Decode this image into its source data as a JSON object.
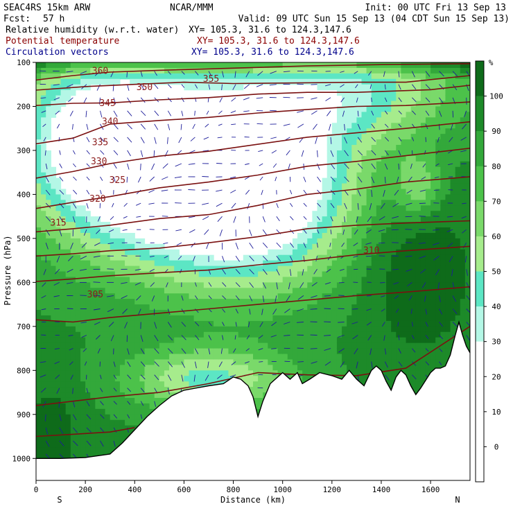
{
  "header": {
    "model": "SEAC4RS 15km ARW",
    "center": "NCAR/MMM",
    "init": "Init: 00 UTC Fri 13 Sep 13",
    "fcst_label": "Fcst:",
    "fcst_value": "57 h",
    "valid": "Valid: 09 UTC Sun 15 Sep 13 (04 CDT Sun 15 Sep 13)"
  },
  "fields": [
    {
      "name": "Relative humidity (w.r.t. water)",
      "xy": "XY= 105.3, 31.6 to 124.3,147.6",
      "color": "#000000"
    },
    {
      "name": "Potential temperature",
      "xy": "XY= 105.3, 31.6 to 124.3,147.6",
      "color": "#8b0000"
    },
    {
      "name": "Circulation vectors",
      "xy": "XY= 105.3, 31.6 to 124.3,147.6",
      "color": "#00008b"
    }
  ],
  "chart_data": {
    "type": "heatmap",
    "xlabel": "Distance (km)",
    "ylabel": "Pressure (hPa)",
    "xlim": [
      0,
      1760
    ],
    "ylim": [
      1050,
      100
    ],
    "x_ticks": [
      0,
      200,
      400,
      600,
      800,
      1000,
      1200,
      1400,
      1600
    ],
    "y_ticks": [
      100,
      200,
      300,
      400,
      500,
      600,
      700,
      800,
      900,
      1000
    ],
    "x_end_labels": {
      "left": "S",
      "right": "N"
    },
    "colorbar": {
      "unit": "%",
      "levels": [
        100,
        90,
        80,
        70,
        60,
        50,
        40,
        30,
        20,
        10,
        0
      ],
      "bands": [
        {
          "lo": 100,
          "hi": 105,
          "color": "#0e6b1a"
        },
        {
          "lo": 90,
          "hi": 100,
          "color": "#1d8a29"
        },
        {
          "lo": 80,
          "hi": 90,
          "color": "#33a83a"
        },
        {
          "lo": 70,
          "hi": 80,
          "color": "#4cc24a"
        },
        {
          "lo": 60,
          "hi": 70,
          "color": "#7ad96a"
        },
        {
          "lo": 50,
          "hi": 60,
          "color": "#a6ec8c"
        },
        {
          "lo": 40,
          "hi": 50,
          "color": "#5ce6c4"
        },
        {
          "lo": 30,
          "hi": 40,
          "color": "#b4f7e6"
        },
        {
          "lo": 20,
          "hi": 30,
          "color": "#ffffff"
        },
        {
          "lo": 10,
          "hi": 20,
          "color": "#ffffff"
        },
        {
          "lo": 0,
          "hi": 10,
          "color": "#ffffff"
        },
        {
          "lo": -10,
          "hi": 0,
          "color": "#ffffff"
        }
      ]
    },
    "terrain": [
      [
        0,
        1000
      ],
      [
        100,
        1000
      ],
      [
        200,
        998
      ],
      [
        300,
        990
      ],
      [
        350,
        965
      ],
      [
        400,
        935
      ],
      [
        450,
        905
      ],
      [
        500,
        880
      ],
      [
        550,
        858
      ],
      [
        600,
        845
      ],
      [
        650,
        840
      ],
      [
        700,
        835
      ],
      [
        760,
        830
      ],
      [
        800,
        815
      ],
      [
        830,
        820
      ],
      [
        860,
        835
      ],
      [
        880,
        860
      ],
      [
        900,
        905
      ],
      [
        920,
        870
      ],
      [
        950,
        830
      ],
      [
        980,
        815
      ],
      [
        1000,
        805
      ],
      [
        1030,
        820
      ],
      [
        1060,
        805
      ],
      [
        1080,
        830
      ],
      [
        1110,
        820
      ],
      [
        1150,
        805
      ],
      [
        1200,
        812
      ],
      [
        1240,
        820
      ],
      [
        1270,
        800
      ],
      [
        1300,
        820
      ],
      [
        1330,
        835
      ],
      [
        1360,
        800
      ],
      [
        1380,
        790
      ],
      [
        1400,
        800
      ],
      [
        1420,
        825
      ],
      [
        1440,
        845
      ],
      [
        1460,
        815
      ],
      [
        1480,
        800
      ],
      [
        1500,
        810
      ],
      [
        1520,
        835
      ],
      [
        1540,
        855
      ],
      [
        1560,
        840
      ],
      [
        1600,
        805
      ],
      [
        1620,
        795
      ],
      [
        1640,
        795
      ],
      [
        1660,
        790
      ],
      [
        1680,
        765
      ],
      [
        1700,
        720
      ],
      [
        1715,
        690
      ],
      [
        1730,
        720
      ],
      [
        1745,
        745
      ],
      [
        1760,
        760
      ]
    ],
    "theta_contours": [
      {
        "value": 360,
        "label_at": [
          260,
          120
        ],
        "points": [
          [
            0,
            140
          ],
          [
            150,
            130
          ],
          [
            300,
            122
          ],
          [
            500,
            118
          ],
          [
            800,
            113
          ],
          [
            1100,
            108
          ],
          [
            1400,
            105
          ],
          [
            1760,
            103
          ]
        ]
      },
      {
        "value": 355,
        "label_at": [
          710,
          138
        ],
        "points": [
          [
            0,
            163
          ],
          [
            200,
            155
          ],
          [
            400,
            150
          ],
          [
            600,
            145
          ],
          [
            800,
            148
          ],
          [
            1000,
            147
          ],
          [
            1300,
            145
          ],
          [
            1500,
            145
          ],
          [
            1760,
            130
          ]
        ]
      },
      {
        "value": 350,
        "label_at": [
          440,
          157
        ],
        "points": [
          [
            0,
            198
          ],
          [
            150,
            193
          ],
          [
            300,
            192
          ],
          [
            500,
            185
          ],
          [
            700,
            180
          ],
          [
            900,
            172
          ],
          [
            1100,
            168
          ],
          [
            1300,
            168
          ],
          [
            1600,
            162
          ],
          [
            1760,
            152
          ]
        ]
      },
      {
        "value": 345,
        "label_at": [
          290,
          193
        ],
        "points": [
          [
            0,
            285
          ],
          [
            150,
            272
          ],
          [
            300,
            240
          ],
          [
            500,
            232
          ],
          [
            700,
            225
          ],
          [
            900,
            215
          ],
          [
            1100,
            207
          ],
          [
            1300,
            200
          ],
          [
            1500,
            198
          ],
          [
            1760,
            190
          ]
        ]
      },
      {
        "value": 340,
        "label_at": [
          300,
          235
        ],
        "points": [
          [
            0,
            363
          ],
          [
            150,
            348
          ],
          [
            300,
            330
          ],
          [
            500,
            313
          ],
          [
            700,
            302
          ],
          [
            900,
            286
          ],
          [
            1100,
            270
          ],
          [
            1300,
            260
          ],
          [
            1500,
            250
          ],
          [
            1760,
            235
          ]
        ]
      },
      {
        "value": 335,
        "label_at": [
          260,
          282
        ],
        "points": [
          [
            0,
            432
          ],
          [
            150,
            418
          ],
          [
            300,
            405
          ],
          [
            500,
            385
          ],
          [
            700,
            372
          ],
          [
            900,
            356
          ],
          [
            1100,
            336
          ],
          [
            1300,
            325
          ],
          [
            1500,
            312
          ],
          [
            1760,
            295
          ]
        ]
      },
      {
        "value": 330,
        "label_at": [
          255,
          325
        ],
        "points": [
          [
            0,
            485
          ],
          [
            150,
            478
          ],
          [
            300,
            470
          ],
          [
            500,
            455
          ],
          [
            700,
            446
          ],
          [
            900,
            425
          ],
          [
            1100,
            400
          ],
          [
            1300,
            388
          ],
          [
            1500,
            372
          ],
          [
            1760,
            360
          ]
        ]
      },
      {
        "value": 325,
        "label_at": [
          330,
          368
        ],
        "points": [
          [
            0,
            540
          ],
          [
            150,
            535
          ],
          [
            300,
            528
          ],
          [
            500,
            522
          ],
          [
            700,
            510
          ],
          [
            900,
            496
          ],
          [
            1100,
            478
          ],
          [
            1300,
            470
          ],
          [
            1500,
            465
          ],
          [
            1760,
            460
          ]
        ]
      },
      {
        "value": 320,
        "label_at": [
          250,
          410
        ],
        "points": [
          [
            0,
            598
          ],
          [
            150,
            592
          ],
          [
            300,
            585
          ],
          [
            500,
            578
          ],
          [
            700,
            572
          ],
          [
            900,
            560
          ],
          [
            1100,
            550
          ],
          [
            1300,
            537
          ],
          [
            1500,
            528
          ],
          [
            1760,
            518
          ]
        ]
      },
      {
        "value": 315,
        "label_at": [
          90,
          465
        ],
        "points": [
          [
            0,
            685
          ],
          [
            150,
            690
          ],
          [
            300,
            680
          ],
          [
            500,
            670
          ],
          [
            700,
            660
          ],
          [
            900,
            650
          ],
          [
            1100,
            640
          ],
          [
            1300,
            630
          ],
          [
            1500,
            622
          ],
          [
            1760,
            610
          ]
        ]
      },
      {
        "value": 310,
        "label_at": [
          1360,
          528
        ],
        "points": [
          [
            0,
            880
          ],
          [
            150,
            870
          ],
          [
            300,
            860
          ],
          [
            500,
            850
          ],
          [
            700,
            830
          ],
          [
            900,
            805
          ],
          [
            1100,
            810
          ],
          [
            1300,
            812
          ],
          [
            1500,
            795
          ],
          [
            1760,
            700
          ]
        ]
      },
      {
        "value": 305,
        "label_at": [
          240,
          628
        ],
        "points": [
          [
            0,
            950
          ],
          [
            150,
            945
          ],
          [
            300,
            940
          ],
          [
            400,
            930
          ]
        ]
      }
    ]
  }
}
